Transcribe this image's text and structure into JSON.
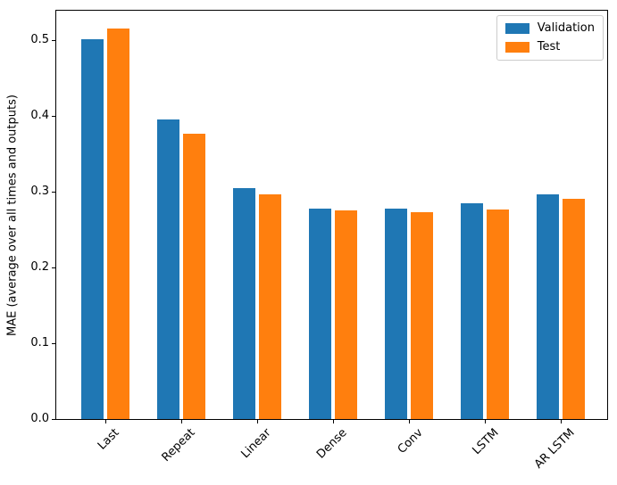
{
  "chart_data": {
    "type": "bar",
    "title": "",
    "categories": [
      "Last",
      "Repeat",
      "Linear",
      "Dense",
      "Conv",
      "LSTM",
      "AR LSTM"
    ],
    "series": [
      {
        "name": "Validation",
        "color": "#1f77b4",
        "values": [
          0.501,
          0.395,
          0.305,
          0.278,
          0.278,
          0.285,
          0.296
        ]
      },
      {
        "name": "Test",
        "color": "#ff7f0e",
        "values": [
          0.516,
          0.377,
          0.297,
          0.275,
          0.273,
          0.276,
          0.291
        ]
      }
    ],
    "xlabel": "",
    "ylabel": "MAE (average over all times and outputs)",
    "ylim": [
      0,
      0.539
    ],
    "yticks": [
      0.0,
      0.1,
      0.2,
      0.3,
      0.4,
      0.5
    ],
    "ytick_labels": [
      "0.0",
      "0.1",
      "0.2",
      "0.3",
      "0.4",
      "0.5"
    ],
    "xtick_rotation_deg": 45,
    "legend": {
      "position": "upper right",
      "entries": [
        "Validation",
        "Test"
      ]
    },
    "grid": false,
    "axis_color": "#000000",
    "background": "#ffffff"
  }
}
